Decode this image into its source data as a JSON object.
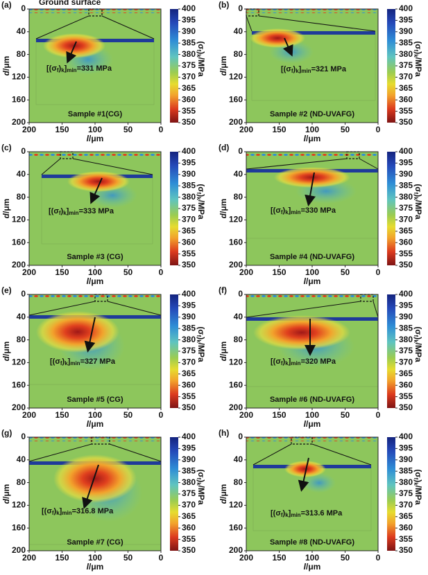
{
  "chart_data": [
    {
      "type": "heatmap",
      "panel_label": "(a)",
      "surface_label": "Ground surface",
      "sample": "Sample #1(CG)",
      "annotation": [
        "[(σ",
        "f",
        ")",
        "k",
        "]",
        "min",
        "=331 MPa"
      ],
      "xlabel": [
        "l",
        "/μm"
      ],
      "ylabel": [
        "d",
        "/μm"
      ],
      "colorbar_label": [
        "(σ",
        "f",
        ")",
        "k",
        "/MPa"
      ],
      "xlim": [
        200,
        0
      ],
      "xticks": [
        200,
        150,
        100,
        50,
        0
      ],
      "ylim": [
        0,
        200
      ],
      "yticks": [
        0,
        40,
        80,
        120,
        160,
        200
      ],
      "clim": [
        350,
        400
      ],
      "cticks": [
        350,
        355,
        360,
        365,
        370,
        375,
        380,
        385,
        390,
        395,
        400
      ]
    },
    {
      "type": "heatmap",
      "panel_label": "(b)",
      "sample": "Sample #2 (ND-UVAFG)",
      "annotation": [
        "[(σ",
        "f",
        ")",
        "k",
        "]",
        "min",
        "=321 MPa"
      ],
      "xlabel": [
        "l",
        "/μm"
      ],
      "ylabel": [
        "d",
        "/μm"
      ],
      "colorbar_label": [
        "(σ",
        "f",
        ")",
        "k",
        "/MPa"
      ],
      "xlim": [
        200,
        0
      ],
      "xticks": [
        200,
        150,
        100,
        50,
        0
      ],
      "ylim": [
        0,
        200
      ],
      "yticks": [
        0,
        40,
        80,
        120,
        160,
        200
      ],
      "clim": [
        350,
        400
      ],
      "cticks": [
        350,
        355,
        360,
        365,
        370,
        375,
        380,
        385,
        390,
        395,
        400
      ]
    },
    {
      "type": "heatmap",
      "panel_label": "(c)",
      "sample": "Sample #3 (CG)",
      "annotation": [
        "[(σ",
        "f",
        ")",
        "k",
        "]",
        "min",
        "=333 MPa"
      ],
      "xlabel": [
        "l",
        "/μm"
      ],
      "ylabel": [
        "d",
        "/μm"
      ],
      "colorbar_label": [
        "(σ",
        "f",
        ")",
        "k",
        "/MPa"
      ],
      "xlim": [
        200,
        0
      ],
      "xticks": [
        200,
        150,
        100,
        50,
        0
      ],
      "ylim": [
        0,
        200
      ],
      "yticks": [
        0,
        40,
        80,
        120,
        160,
        200
      ],
      "clim": [
        350,
        400
      ],
      "cticks": [
        350,
        355,
        360,
        365,
        370,
        375,
        380,
        385,
        390,
        395,
        400
      ]
    },
    {
      "type": "heatmap",
      "panel_label": "(d)",
      "sample": "Sample #4 (ND-UVAFG)",
      "annotation": [
        "[(σ",
        "f",
        ")",
        "k",
        "]",
        "min",
        "=330 MPa"
      ],
      "xlabel": [
        "l",
        "/μm"
      ],
      "ylabel": [
        "d",
        "/μm"
      ],
      "colorbar_label": [
        "(σ",
        "f",
        ")",
        "k",
        "/MPa"
      ],
      "xlim": [
        200,
        0
      ],
      "xticks": [
        200,
        150,
        100,
        50,
        0
      ],
      "ylim": [
        0,
        200
      ],
      "yticks": [
        0,
        40,
        80,
        120,
        160,
        200
      ],
      "clim": [
        350,
        400
      ],
      "cticks": [
        350,
        355,
        360,
        365,
        370,
        375,
        380,
        385,
        390,
        395,
        400
      ]
    },
    {
      "type": "heatmap",
      "panel_label": "(e)",
      "sample": "Sample #5 (CG)",
      "annotation": [
        "[(σ",
        "f",
        ")",
        "k",
        "]",
        "min",
        "=327 MPa"
      ],
      "xlabel": [
        "l",
        "/μm"
      ],
      "ylabel": [
        "d",
        "/μm"
      ],
      "colorbar_label": [
        "(σ",
        "f",
        ")",
        "k",
        "/MPa"
      ],
      "xlim": [
        200,
        0
      ],
      "xticks": [
        200,
        150,
        100,
        50,
        0
      ],
      "ylim": [
        0,
        200
      ],
      "yticks": [
        0,
        40,
        80,
        120,
        160,
        200
      ],
      "clim": [
        350,
        400
      ],
      "cticks": [
        350,
        355,
        360,
        365,
        370,
        375,
        380,
        385,
        390,
        395,
        400
      ]
    },
    {
      "type": "heatmap",
      "panel_label": "(f)",
      "sample": "Sample #6 (ND-UVAFG)",
      "annotation": [
        "[(σ",
        "f",
        ")",
        "k",
        "]",
        "min",
        "=320 MPa"
      ],
      "xlabel": [
        "l",
        "/μm"
      ],
      "ylabel": [
        "d",
        "/μm"
      ],
      "colorbar_label": [
        "(σ",
        "f",
        ")",
        "k",
        "/MPa"
      ],
      "xlim": [
        200,
        0
      ],
      "xticks": [
        200,
        150,
        100,
        50,
        0
      ],
      "ylim": [
        0,
        200
      ],
      "yticks": [
        0,
        40,
        80,
        120,
        160,
        200
      ],
      "clim": [
        350,
        400
      ],
      "cticks": [
        350,
        355,
        360,
        365,
        370,
        375,
        380,
        385,
        390,
        395,
        400
      ]
    },
    {
      "type": "heatmap",
      "panel_label": "(g)",
      "sample": "Sample #7 (CG)",
      "annotation": [
        "[(σ",
        "f",
        ")",
        "k",
        "]",
        "min",
        "=316.8 MPa"
      ],
      "xlabel": [
        "l",
        "/μm"
      ],
      "ylabel": [
        "d",
        "/μm"
      ],
      "colorbar_label": [
        "(σ",
        "f",
        ")",
        "k",
        "/MPa"
      ],
      "xlim": [
        200,
        0
      ],
      "xticks": [
        200,
        150,
        100,
        50,
        0
      ],
      "ylim": [
        0,
        200
      ],
      "yticks": [
        0,
        40,
        80,
        120,
        160,
        200
      ],
      "clim": [
        350,
        400
      ],
      "cticks": [
        350,
        355,
        360,
        365,
        370,
        375,
        380,
        385,
        390,
        395,
        400
      ]
    },
    {
      "type": "heatmap",
      "panel_label": "(h)",
      "sample": "Sample #8 (ND-UVAFG)",
      "annotation": [
        "[(σ",
        "f",
        ")",
        "k",
        "]",
        "min",
        "=313.6 MPa"
      ],
      "xlabel": [
        "l",
        "/μm"
      ],
      "ylabel": [
        "d",
        "/μm"
      ],
      "colorbar_label": [
        "(σ",
        "f",
        ")",
        "k",
        "/MPa"
      ],
      "xlim": [
        200,
        0
      ],
      "xticks": [
        200,
        150,
        100,
        50,
        0
      ],
      "ylim": [
        0,
        200
      ],
      "yticks": [
        0,
        40,
        80,
        120,
        160,
        200
      ],
      "clim": [
        350,
        400
      ],
      "cticks": [
        350,
        355,
        360,
        365,
        370,
        375,
        380,
        385,
        390,
        395,
        400
      ]
    }
  ]
}
